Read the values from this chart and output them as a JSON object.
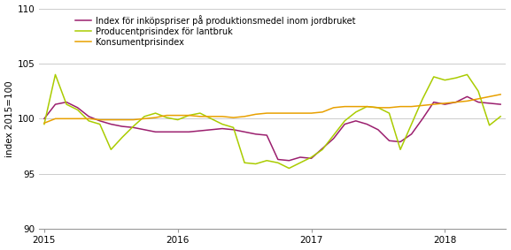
{
  "title": "",
  "ylabel": "index 2015=100",
  "ylim": [
    90,
    110
  ],
  "yticks": [
    90,
    95,
    100,
    105,
    110
  ],
  "xtick_positions": [
    0,
    12,
    24,
    36
  ],
  "xtick_labels": [
    "2015",
    "2016",
    "2017",
    "2018"
  ],
  "color_purple": "#9B1F6E",
  "color_green": "#AACC00",
  "color_orange": "#E8A000",
  "legend_labels": [
    "Index för inköpspriser på produktionsmedel inom jordbruket",
    "Producentprisindex för lantbruk",
    "Konsumentprisindex"
  ],
  "series_purple": [
    100.0,
    101.3,
    101.5,
    101.0,
    100.2,
    99.8,
    99.5,
    99.3,
    99.2,
    99.0,
    98.8,
    98.8,
    98.8,
    98.8,
    98.9,
    99.0,
    99.1,
    99.0,
    98.8,
    98.6,
    98.5,
    96.3,
    96.2,
    96.5,
    96.4,
    97.3,
    98.2,
    99.5,
    99.8,
    99.5,
    99.0,
    98.0,
    97.9,
    98.6,
    100.0,
    101.5,
    101.3,
    101.5,
    102.0,
    101.5,
    101.4,
    101.3
  ],
  "series_green": [
    99.5,
    104.0,
    101.3,
    100.8,
    99.8,
    99.5,
    97.2,
    98.3,
    99.3,
    100.2,
    100.5,
    100.1,
    99.9,
    100.3,
    100.5,
    100.0,
    99.5,
    99.2,
    96.0,
    95.9,
    96.2,
    96.0,
    95.5,
    96.0,
    96.5,
    97.2,
    98.5,
    99.8,
    100.6,
    101.1,
    101.0,
    100.5,
    97.2,
    99.5,
    101.8,
    103.8,
    103.5,
    103.7,
    104.0,
    102.5,
    99.4,
    100.2
  ],
  "series_orange": [
    99.6,
    100.0,
    100.0,
    100.0,
    100.0,
    99.9,
    99.9,
    99.9,
    99.9,
    100.0,
    100.1,
    100.3,
    100.3,
    100.3,
    100.2,
    100.2,
    100.2,
    100.1,
    100.2,
    100.4,
    100.5,
    100.5,
    100.5,
    100.5,
    100.5,
    100.6,
    101.0,
    101.1,
    101.1,
    101.1,
    101.0,
    101.0,
    101.1,
    101.1,
    101.2,
    101.3,
    101.4,
    101.5,
    101.6,
    101.8,
    102.0,
    102.2
  ],
  "grid_color": "#cccccc",
  "font_size": 7.5,
  "line_width": 1.1,
  "figsize": [
    5.77,
    2.83
  ],
  "dpi": 100
}
